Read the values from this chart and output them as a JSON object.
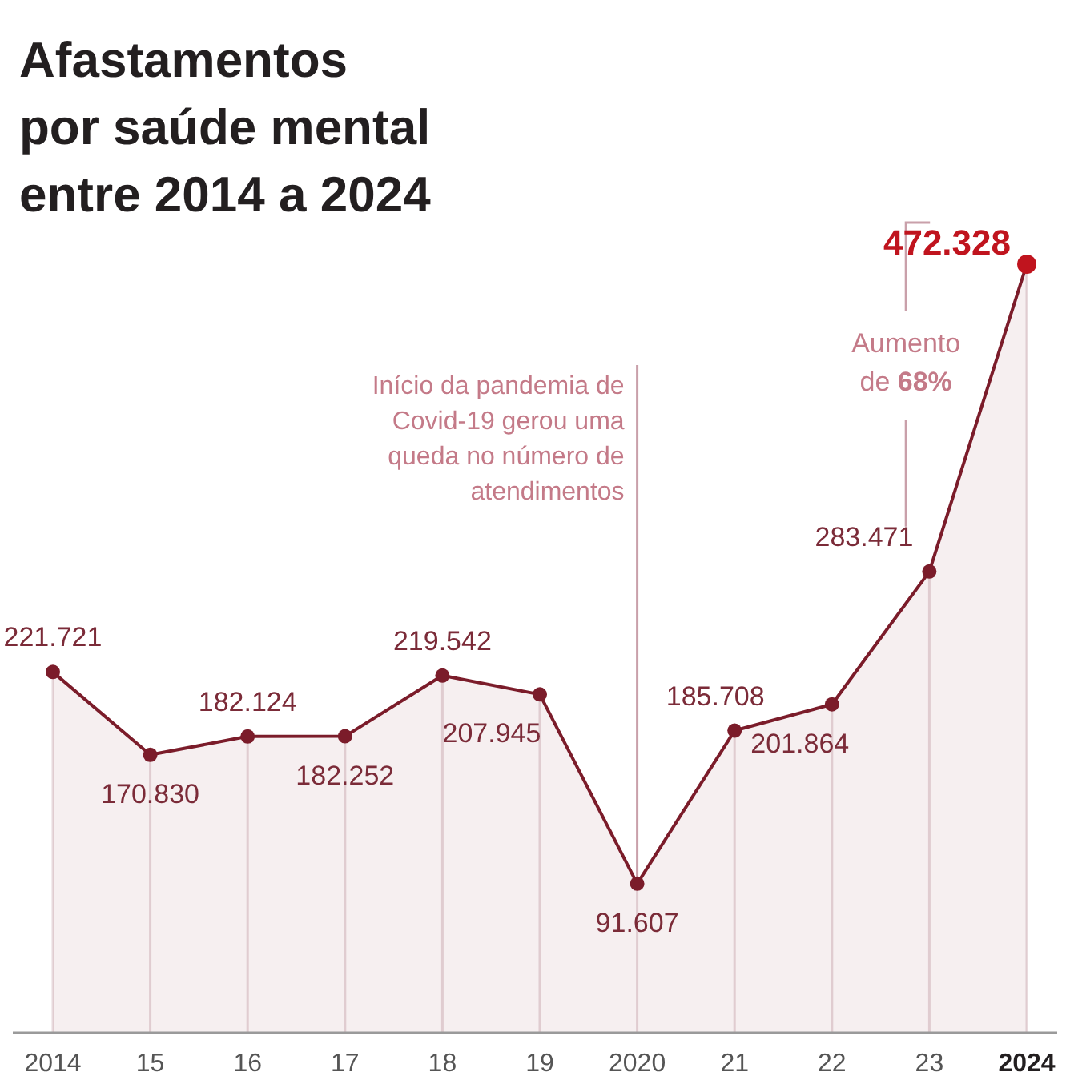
{
  "chart_data": {
    "type": "area",
    "title": "Afastamentos por saúde mental entre 2014 a 2024",
    "categories": [
      "2014",
      "15",
      "16",
      "17",
      "18",
      "19",
      "2020",
      "21",
      "22",
      "23",
      "2024"
    ],
    "series": [
      {
        "color": "#7b1c2a",
        "values": [
          221721,
          170830,
          182124,
          182252,
          219542,
          207945,
          91607,
          185708,
          201864,
          283471,
          472328
        ],
        "value_labels": [
          "221.721",
          "170.830",
          "182.124",
          "182.252",
          "219.542",
          "207.945",
          "91.607",
          "185.708",
          "201.864",
          "283.471",
          "472.328"
        ]
      }
    ],
    "marker": "circle",
    "grid": "x",
    "annotations": [
      {
        "text": "Início da pandemia de Covid-19 gerou uma queda no número de atendimentos",
        "x": "2020",
        "y": 91607
      },
      "Aumento de 68%"
    ]
  }
}
